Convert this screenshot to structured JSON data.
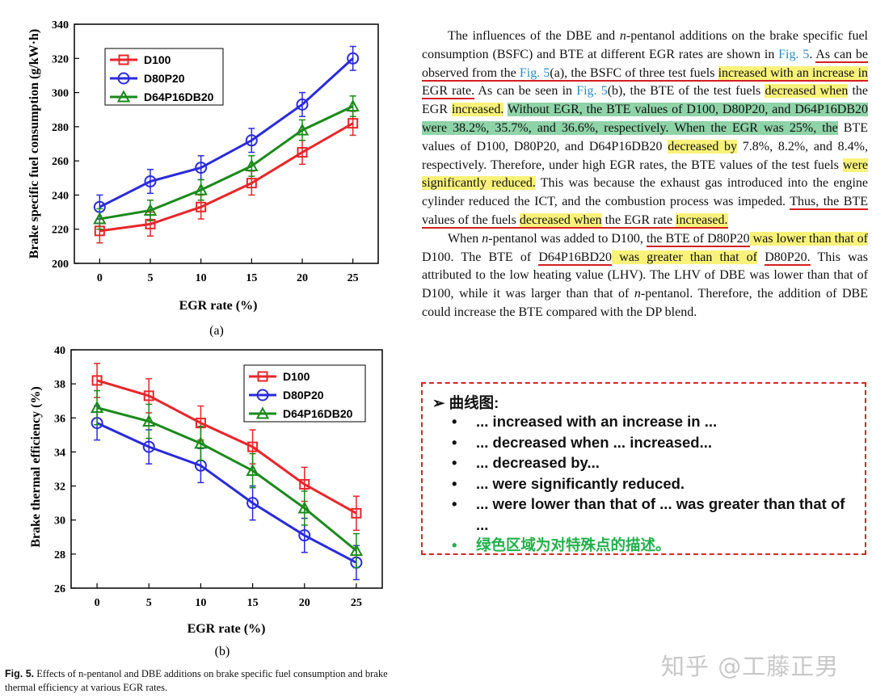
{
  "chart_data": [
    {
      "type": "line",
      "panel": "(a)",
      "xlabel": "EGR rate (%)",
      "ylabel": "Brake specific fuel consumption (g/kW·h)",
      "x": [
        0,
        5,
        10,
        15,
        20,
        25
      ],
      "xlim": [
        -2.5,
        27.5
      ],
      "ylim": [
        200,
        340
      ],
      "yticks": [
        200,
        220,
        240,
        260,
        280,
        300,
        320,
        340
      ],
      "legend_position": "top-left",
      "series": [
        {
          "name": "D100",
          "color": "#e8262a",
          "marker": "square",
          "values": [
            219,
            223,
            233,
            247,
            265,
            282
          ],
          "err": [
            7,
            7,
            7,
            7,
            7,
            7
          ]
        },
        {
          "name": "D80P20",
          "color": "#2a2adc",
          "marker": "circle",
          "values": [
            233,
            248,
            256,
            272,
            293,
            320
          ],
          "err": [
            7,
            7,
            7,
            7,
            7,
            7
          ]
        },
        {
          "name": "D64P16DB20",
          "color": "#1a8a1a",
          "marker": "triangle",
          "values": [
            226,
            231,
            243,
            257,
            278,
            292
          ],
          "err": [
            6,
            6,
            6,
            6,
            6,
            6
          ]
        }
      ]
    },
    {
      "type": "line",
      "panel": "(b)",
      "xlabel": "EGR rate (%)",
      "ylabel": "Brake thermal efficiency (%)",
      "x": [
        0,
        5,
        10,
        15,
        20,
        25
      ],
      "xlim": [
        -2.5,
        27.5
      ],
      "ylim": [
        26,
        40
      ],
      "yticks": [
        26,
        28,
        30,
        32,
        34,
        36,
        38,
        40
      ],
      "legend_position": "top-right",
      "series": [
        {
          "name": "D100",
          "color": "#e8262a",
          "marker": "square",
          "values": [
            38.2,
            37.3,
            35.7,
            34.3,
            32.1,
            30.4
          ],
          "err": [
            1.0,
            1.0,
            1.0,
            1.0,
            1.0,
            1.0
          ]
        },
        {
          "name": "D80P20",
          "color": "#2a2adc",
          "marker": "circle",
          "values": [
            35.7,
            34.3,
            33.2,
            31.0,
            29.1,
            27.5
          ],
          "err": [
            1.0,
            1.0,
            1.0,
            1.0,
            1.0,
            1.0
          ]
        },
        {
          "name": "D64P16DB20",
          "color": "#1a8a1a",
          "marker": "triangle",
          "values": [
            36.6,
            35.8,
            34.5,
            32.9,
            30.7,
            28.2
          ],
          "err": [
            1.0,
            1.0,
            1.0,
            1.0,
            1.0,
            1.0
          ]
        }
      ]
    }
  ],
  "caption": {
    "label": "Fig. 5.",
    "text": "Effects of n-pentanol and DBE additions on brake specific fuel consumption and brake thermal efficiency at various EGR rates."
  },
  "text_body": {
    "p1": [
      {
        "t": "The influences of the DBE and "
      },
      {
        "t": "n",
        "it": true
      },
      {
        "t": "-pentanol additions on the brake specific fuel consumption (BSFC) and BTE at different EGR rates are shown in "
      },
      {
        "t": "Fig. 5",
        "link": true
      },
      {
        "t": ". "
      },
      {
        "t": "As can be observed from the ",
        "ul": true
      },
      {
        "t": "Fig. 5",
        "link": true,
        "ul": true
      },
      {
        "t": "(a), the BSFC of three test fuels ",
        "ul": true
      },
      {
        "t": "increased with an increase in",
        "hl": true,
        "ul": true
      },
      {
        "t": " EGR rate.",
        "ul": true
      },
      {
        "t": " As can be seen in "
      },
      {
        "t": "Fig. 5",
        "link": true
      },
      {
        "t": "(b), the BTE of the test fuels "
      },
      {
        "t": "decreased when",
        "hl": true
      },
      {
        "t": " the EGR "
      },
      {
        "t": "increased.",
        "hl": true
      },
      {
        "t": " "
      },
      {
        "t": "Without EGR, the BTE values of D100, D80P20, and D64P16DB20 were 38.2%, 35.7%, and 36.6%, respectively. When the EGR was 25%, the",
        "gr": true
      },
      {
        "t": " BTE values of D100, D80P20, and D64P16DB20 "
      },
      {
        "t": "decreased by",
        "hl": true
      },
      {
        "t": " 7.8%, 8.2%, and 8.4%, respectively. Therefore, under high EGR rates, the BTE values of the test fuels "
      },
      {
        "t": "were significantly reduced.",
        "hl": true
      },
      {
        "t": " This was because the exhaust gas introduced into the engine cylinder reduced the ICT, and the combustion process was impeded. "
      },
      {
        "t": "Thus, the BTE values of the fuels ",
        "ul": true
      },
      {
        "t": "decreased when",
        "hl": true,
        "ul": true
      },
      {
        "t": " the EGR rate ",
        "ul": true
      },
      {
        "t": "increased.",
        "hl": true,
        "ul": true
      }
    ],
    "p2": [
      {
        "t": "When "
      },
      {
        "t": "n",
        "it": true
      },
      {
        "t": "-pentanol was added to D100, "
      },
      {
        "t": "the BTE of D80P20",
        "ul": true
      },
      {
        "t": " was lower than that of",
        "hl": true
      },
      {
        "t": " D100. The BTE of "
      },
      {
        "t": "D64P16BD20",
        "ul": true
      },
      {
        "t": " was greater than that of",
        "hl": true
      },
      {
        "t": " "
      },
      {
        "t": "D80P20.",
        "ul": true
      },
      {
        "t": " This was attributed to the low heating value (LHV). The LHV of DBE was lower than that of D100, while it was larger than that of "
      },
      {
        "t": "n",
        "it": true
      },
      {
        "t": "-pentanol. Therefore, the addition of DBE could increase the BTE compared with the DP blend."
      }
    ]
  },
  "notes": {
    "heading": "曲线图:",
    "items": [
      "... increased with an increase in ...",
      "... decreased when ... increased...",
      "... decreased by...",
      "... were significantly reduced.",
      "... were lower than that of ... was greater than that of ..."
    ],
    "green_note": "绿色区域为对特殊点的描述。"
  },
  "watermark": "知乎 @工藤正男",
  "colors": {
    "highlight": "#f8f27a",
    "green_highlight": "#8fd3a8",
    "underline": "#d32020",
    "link": "#2e8bc0"
  }
}
